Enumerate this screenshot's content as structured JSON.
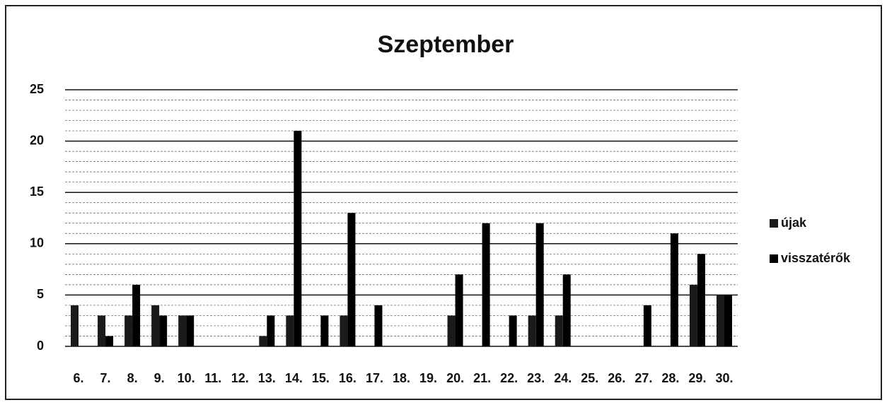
{
  "chart_data": {
    "type": "bar",
    "title": "Szeptember",
    "categories": [
      "6.",
      "7.",
      "8.",
      "9.",
      "10.",
      "11.",
      "12.",
      "13.",
      "14.",
      "15.",
      "16.",
      "17.",
      "18.",
      "19.",
      "20.",
      "21.",
      "22.",
      "23.",
      "24.",
      "25.",
      "26.",
      "27.",
      "28.",
      "29.",
      "30."
    ],
    "series": [
      {
        "name": "újak",
        "color": "#1a1a1a",
        "values": [
          4,
          3,
          3,
          4,
          3,
          0,
          0,
          1,
          3,
          0,
          3,
          0,
          0,
          0,
          3,
          0,
          0,
          3,
          3,
          0,
          0,
          0,
          0,
          6,
          5
        ]
      },
      {
        "name": "visszatérők",
        "color": "#000000",
        "values": [
          0,
          1,
          6,
          3,
          3,
          0,
          0,
          3,
          21,
          3,
          13,
          4,
          0,
          0,
          7,
          12,
          3,
          12,
          7,
          0,
          0,
          4,
          11,
          9,
          5
        ]
      }
    ],
    "ylim": [
      0,
      25
    ],
    "yticks": [
      0,
      5,
      10,
      15,
      20,
      25
    ],
    "grid": true,
    "legend": "right"
  }
}
